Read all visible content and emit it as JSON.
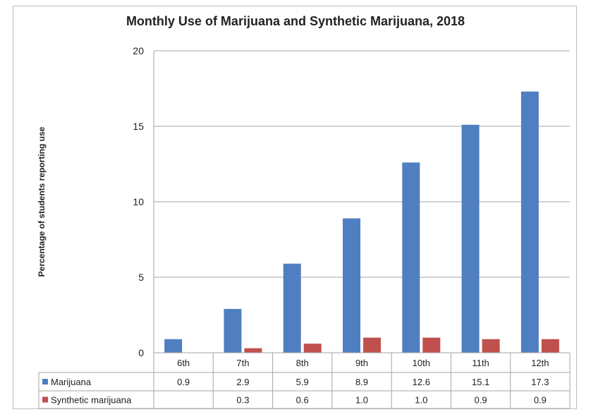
{
  "chart_data": {
    "type": "bar",
    "title": "Monthly Use of Marijuana and Synthetic Marijuana, 2018",
    "ylabel": "Percentage of students reporting use",
    "xlabel": "",
    "ylim": [
      0,
      20
    ],
    "yticks": [
      0,
      5,
      10,
      15,
      20
    ],
    "grid": true,
    "legend": "data-table",
    "categories": [
      "6th",
      "7th",
      "8th",
      "9th",
      "10th",
      "11th",
      "12th"
    ],
    "series": [
      {
        "name": "Marijuana",
        "color": "#4f7fc0",
        "values": [
          0.9,
          2.9,
          5.9,
          8.9,
          12.6,
          15.1,
          17.3
        ],
        "labels": [
          "0.9",
          "2.9",
          "5.9",
          "8.9",
          "12.6",
          "15.1",
          "17.3"
        ]
      },
      {
        "name": "Synthetic marijuana",
        "color": "#c0504d",
        "values": [
          null,
          0.3,
          0.6,
          1.0,
          1.0,
          0.9,
          0.9
        ],
        "labels": [
          "",
          "0.3",
          "0.6",
          "1.0",
          "1.0",
          "0.9",
          "0.9"
        ]
      }
    ]
  }
}
